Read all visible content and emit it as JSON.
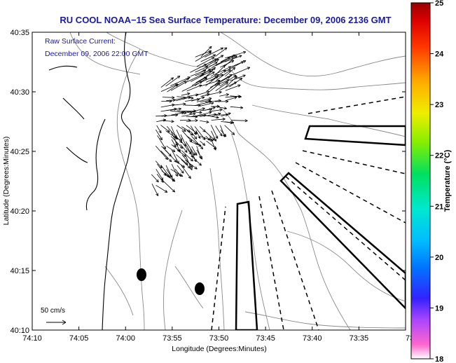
{
  "chart_data": {
    "type": "map",
    "title": "RU COOL  NOAA−15  Sea Surface Temperature:  December 09, 2006 2136 GMT",
    "annotation_lines": [
      "Raw Surface Current:",
      "December 09, 2006 22:00 GMT"
    ],
    "xlabel": "Longitude (Degrees:Minutes)",
    "ylabel": "Latitude (Degrees:Minutes)",
    "x_ticks": [
      "74:10",
      "74:05",
      "74:00",
      "73:55",
      "73:50",
      "73:45",
      "73:40",
      "73:35",
      "73:3"
    ],
    "y_ticks": [
      "40:35",
      "40:30",
      "40:25",
      "40:20",
      "40:15",
      "40:10"
    ],
    "colorbar": {
      "label": "Temperature (°C)",
      "ticks": [
        "25",
        "24",
        "23",
        "22",
        "21",
        "20",
        "19",
        "18"
      ],
      "range": [
        18,
        25
      ]
    },
    "scale_vector_label": "50 cm/s",
    "grid": false
  }
}
